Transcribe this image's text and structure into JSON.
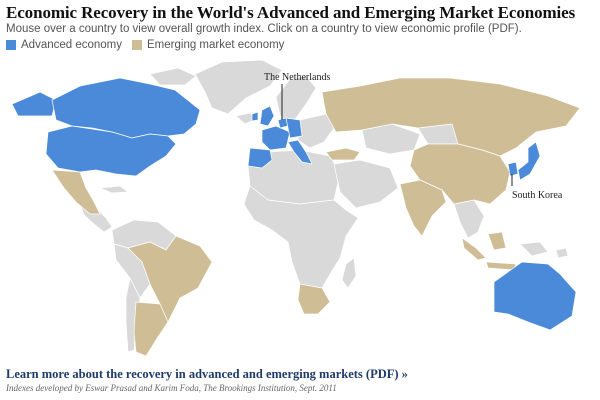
{
  "header": {
    "title": "Economic Recovery in the World's Advanced and Emerging Market Economies",
    "subtitle": "Mouse over a country to view overall growth index. Click on a country to view economic profile (PDF)."
  },
  "legend": {
    "advanced": {
      "label": "Advanced economy",
      "color": "#4a8ad9"
    },
    "emerging": {
      "label": "Emerging market economy",
      "color": "#cfbd95"
    }
  },
  "map": {
    "other_color": "#d9d9d9",
    "callouts": {
      "netherlands": "The Netherlands",
      "south_korea": "South Korea"
    }
  },
  "footer": {
    "link_text": "Learn more about the recovery in advanced and emerging markets (PDF) »",
    "credit": "Indexes developed by Eswar Prasad and Karim Foda, The Brookings Institution, Sept. 2011"
  }
}
